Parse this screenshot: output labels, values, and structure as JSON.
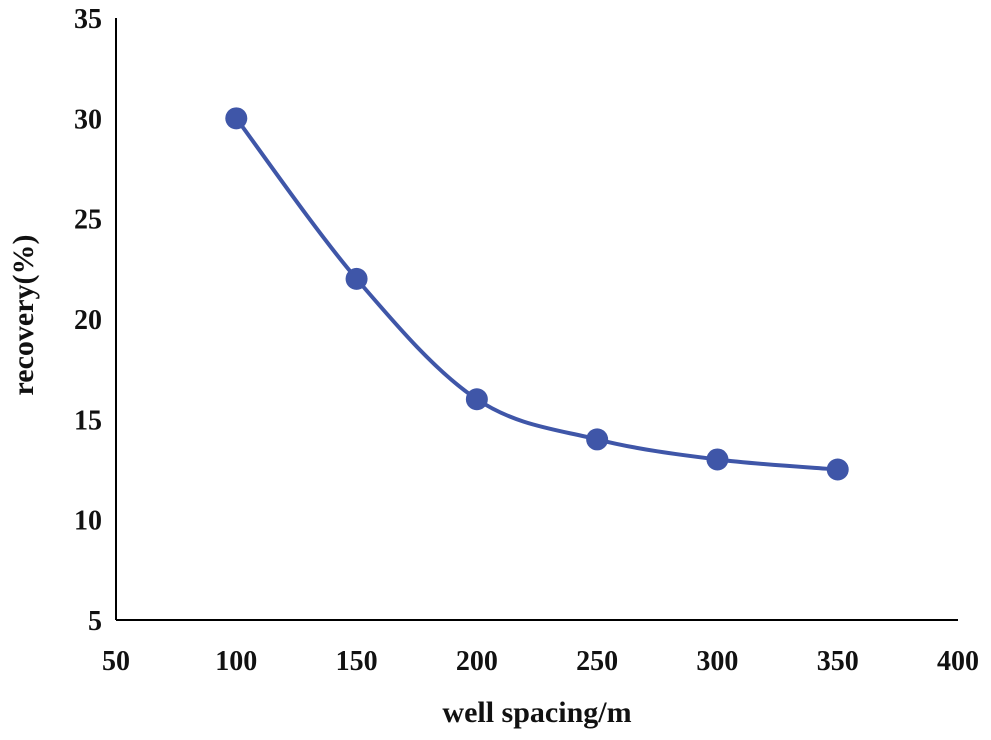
{
  "chart_data": {
    "type": "line",
    "title": "",
    "xlabel": "well spacing/m",
    "ylabel": "recovery(%)",
    "xlim": [
      50,
      400
    ],
    "ylim": [
      5,
      35
    ],
    "xticks": [
      "50",
      "100",
      "150",
      "200",
      "250",
      "300",
      "350",
      "400"
    ],
    "yticks": [
      "5",
      "10",
      "15",
      "20",
      "25",
      "30",
      "35"
    ],
    "grid": false,
    "legend": "none",
    "series": [
      {
        "name": "recovery",
        "color": "#3f56a8",
        "smooth": true,
        "markers": true,
        "x": [
          100,
          150,
          200,
          250,
          300,
          350
        ],
        "y": [
          30,
          22,
          16,
          14,
          13,
          12.5
        ]
      }
    ]
  }
}
